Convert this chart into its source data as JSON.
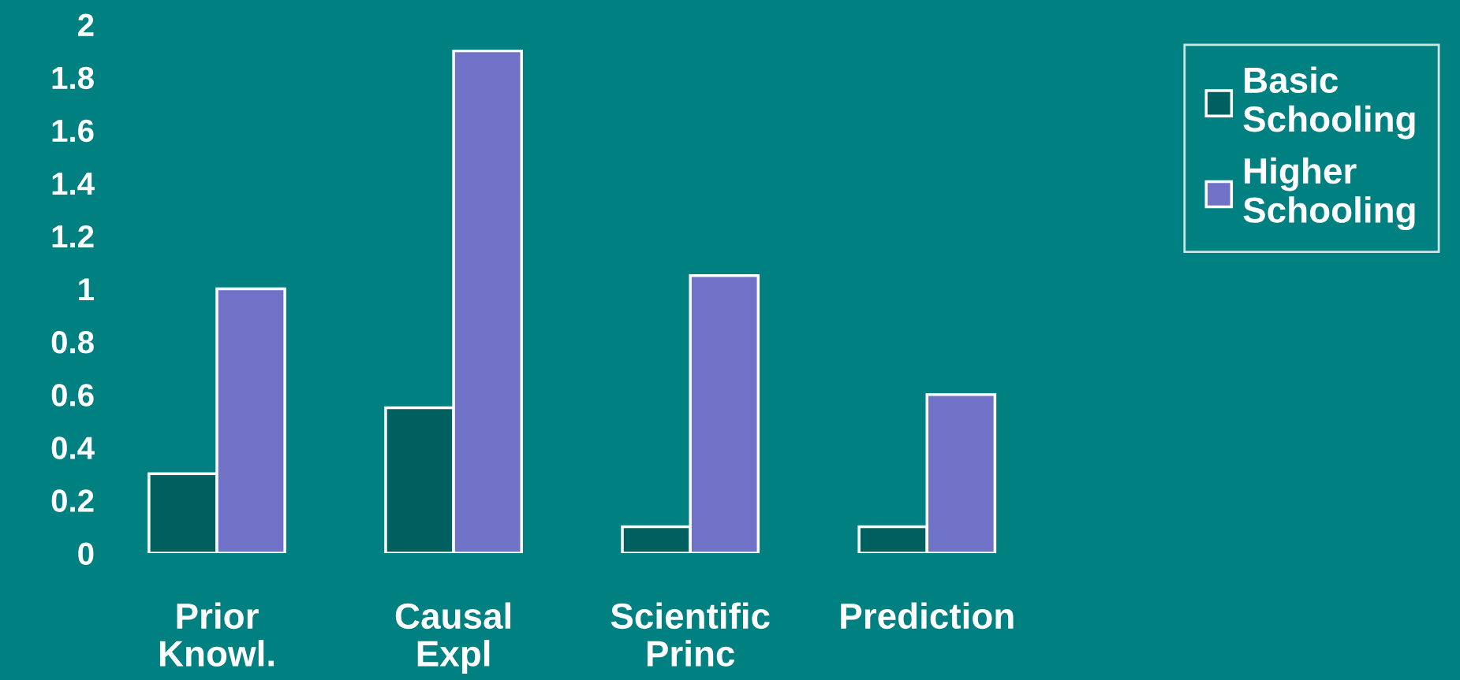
{
  "chart_data": {
    "type": "bar",
    "categories": [
      "Prior\nKnowl.",
      "Causal\nExpl",
      "Scientific\nPrinc",
      "Prediction"
    ],
    "series": [
      {
        "name": "Basic\nSchooling",
        "color": "#006060",
        "values": [
          0.3,
          0.55,
          0.1,
          0.1
        ]
      },
      {
        "name": "Higher\nSchooling",
        "color": "#6f72c6",
        "values": [
          1.0,
          1.9,
          1.05,
          0.6
        ]
      }
    ],
    "ylim": [
      0,
      2
    ],
    "yticks": [
      0,
      0.2,
      0.4,
      0.6,
      0.8,
      1,
      1.2,
      1.4,
      1.6,
      1.8,
      2
    ],
    "grid": false,
    "legend": "top right"
  }
}
